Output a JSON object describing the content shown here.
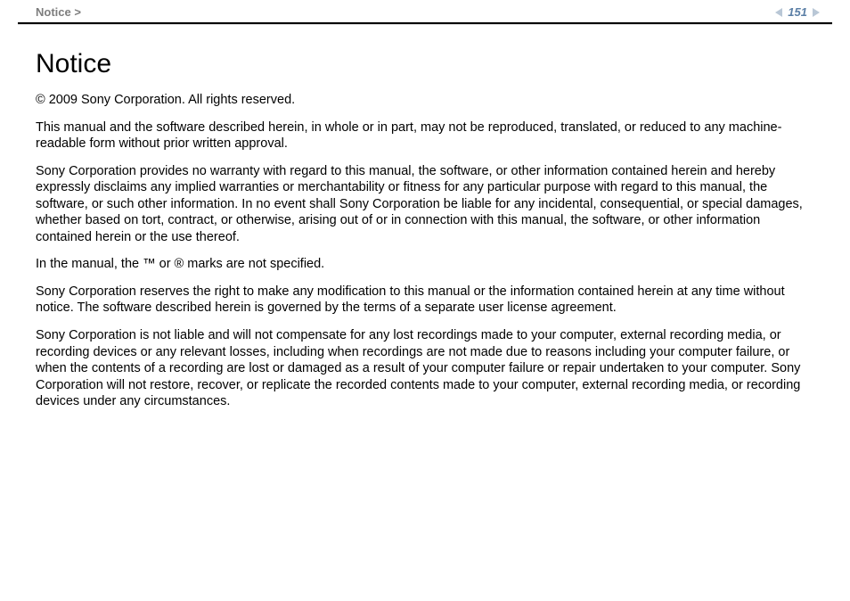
{
  "header": {
    "breadcrumb": "Notice >",
    "page_number": "151"
  },
  "document": {
    "title": "Notice",
    "paragraphs": [
      "© 2009 Sony Corporation. All rights reserved.",
      "This manual and the software described herein, in whole or in part, may not be reproduced, translated, or reduced to any machine-readable form without prior written approval.",
      "Sony Corporation provides no warranty with regard to this manual, the software, or other information contained herein and hereby expressly disclaims any implied warranties or merchantability or fitness for any particular purpose with regard to this manual, the software, or such other information. In no event shall Sony Corporation be liable for any incidental, consequential, or special damages, whether based on tort, contract, or otherwise, arising out of or in connection with this manual, the software, or other information contained herein or the use thereof.",
      "In the manual, the ™ or ® marks are not specified.",
      "Sony Corporation reserves the right to make any modification to this manual or the information contained herein at any time without notice. The software described herein is governed by the terms of a separate user license agreement.",
      "Sony Corporation is not liable and will not compensate for any lost recordings made to your computer, external recording media, or recording devices or any relevant losses, including when recordings are not made due to reasons including your computer failure, or when the contents of a recording are lost or damaged as a result of your computer failure or repair undertaken to your computer. Sony Corporation will not restore, recover, or replicate the recorded contents made to your computer, external recording media, or recording devices under any circumstances."
    ]
  },
  "colors": {
    "breadcrumb_color": "#7d7d7d",
    "page_number_color": "#5b7fa6",
    "arrow_color": "#b9c7d6",
    "divider_color": "#000000",
    "text_color": "#000000",
    "background": "#ffffff"
  }
}
